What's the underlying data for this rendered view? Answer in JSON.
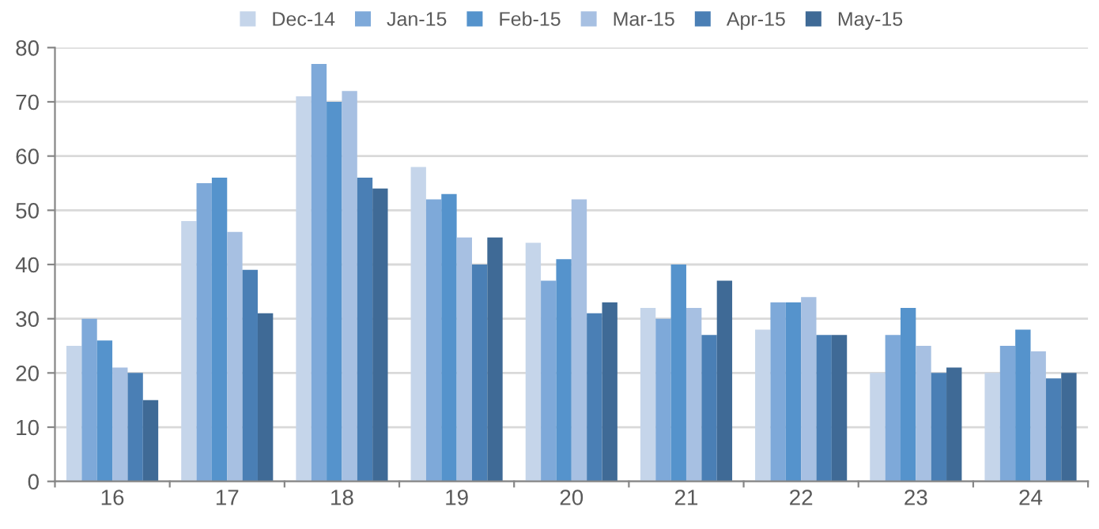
{
  "chart_data": {
    "type": "bar",
    "categories": [
      "16",
      "17",
      "18",
      "19",
      "20",
      "21",
      "22",
      "23",
      "24"
    ],
    "series": [
      {
        "name": "Dec-14",
        "color": "#c5d5ea",
        "values": [
          25,
          48,
          71,
          58,
          44,
          32,
          28,
          20,
          20
        ]
      },
      {
        "name": "Jan-15",
        "color": "#7ea9d9",
        "values": [
          30,
          55,
          77,
          52,
          37,
          30,
          33,
          27,
          25
        ]
      },
      {
        "name": "Feb-15",
        "color": "#5593cc",
        "values": [
          26,
          56,
          70,
          53,
          41,
          40,
          33,
          32,
          28
        ]
      },
      {
        "name": "Mar-15",
        "color": "#a7c0e2",
        "values": [
          21,
          46,
          72,
          45,
          52,
          32,
          34,
          25,
          24
        ]
      },
      {
        "name": "Apr-15",
        "color": "#4a7fb5",
        "values": [
          20,
          39,
          56,
          40,
          31,
          27,
          27,
          20,
          19
        ]
      },
      {
        "name": "May-15",
        "color": "#3f6a96",
        "values": [
          15,
          31,
          54,
          45,
          33,
          37,
          27,
          21,
          20
        ]
      }
    ],
    "ylim": [
      0,
      80
    ],
    "yticks": [
      0,
      10,
      20,
      30,
      40,
      50,
      60,
      70,
      80
    ],
    "grid": "y",
    "legend": "top"
  }
}
